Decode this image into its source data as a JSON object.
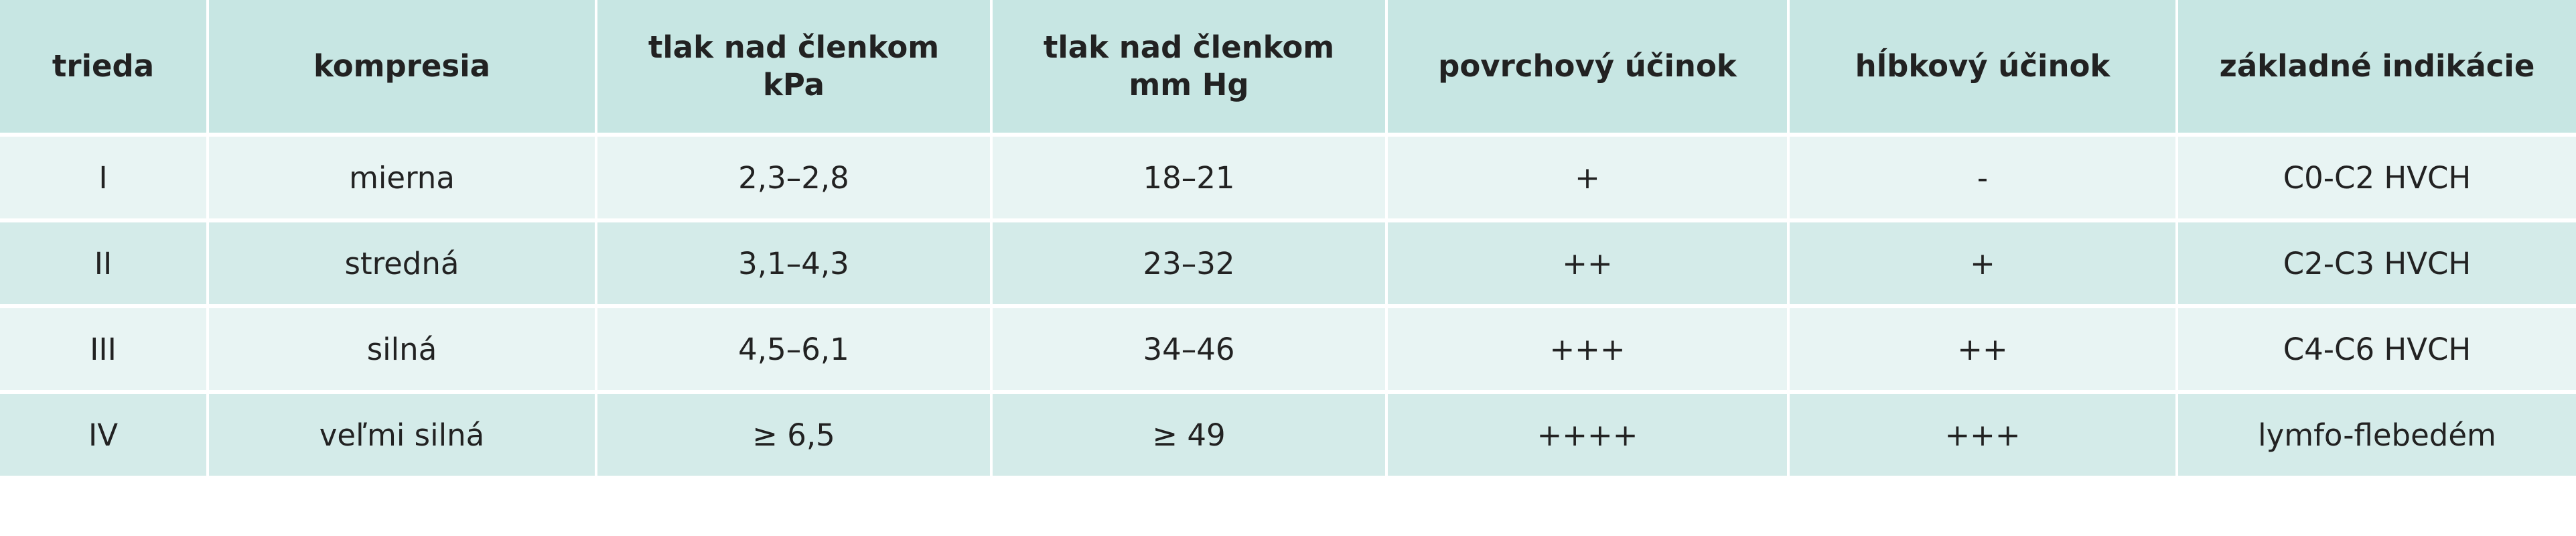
{
  "table": {
    "headers": [
      "trieda",
      "kompresia",
      "tlak nad členkom\nkPa",
      "tlak nad členkom\nmm Hg",
      "povrchový účinok",
      "hĺbkový účinok",
      "základné indikácie"
    ],
    "rows": [
      [
        "I",
        "mierna",
        "2,3–2,8",
        "18–21",
        "+",
        "-",
        "C0-C2 HVCH"
      ],
      [
        "II",
        "stredná",
        "3,1–4,3",
        "23–32",
        "++",
        "+",
        "C2-C3 HVCH"
      ],
      [
        "III",
        "silná",
        "4,5–6,1",
        "34–46",
        "+++",
        "++",
        "C4-C6 HVCH"
      ],
      [
        "IV",
        "veľmi silná",
        "≥ 6,5",
        "≥ 49",
        "++++",
        "+++",
        "lymfo-flebedém"
      ]
    ]
  }
}
